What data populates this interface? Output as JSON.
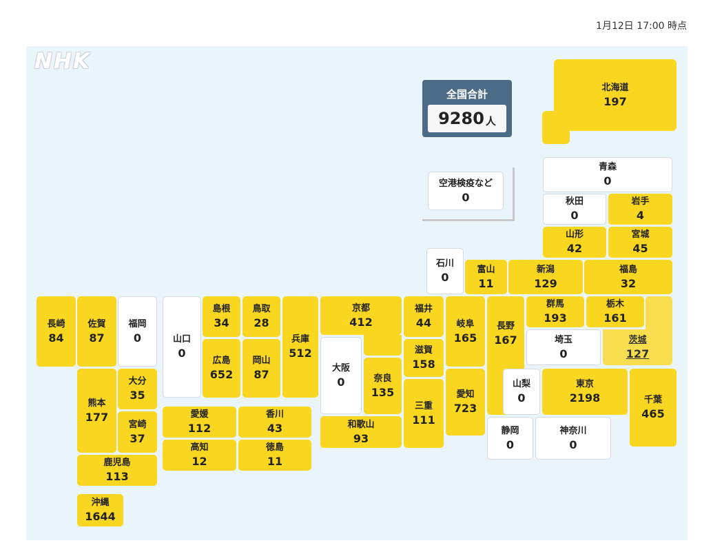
{
  "timestamp": "1月12日 17:00 時点",
  "logo": "NHK",
  "total": {
    "label": "全国合計",
    "value": "9280",
    "unit": "人"
  },
  "airport": {
    "name": "空港検疫など",
    "value": "0"
  },
  "colors": {
    "case_fill": "#f9d61f",
    "zero_fill": "#ffffff",
    "selected_fill": "#f8de4e",
    "map_bg": "#e9f4fb",
    "total_bg": "#4b6b86"
  },
  "prefectures": {
    "hokkaido": {
      "name": "北海道",
      "value": "197"
    },
    "aomori": {
      "name": "青森",
      "value": "0"
    },
    "akita": {
      "name": "秋田",
      "value": "0"
    },
    "iwate": {
      "name": "岩手",
      "value": "4"
    },
    "yamagata": {
      "name": "山形",
      "value": "42"
    },
    "miyagi": {
      "name": "宮城",
      "value": "45"
    },
    "ishikawa": {
      "name": "石川",
      "value": "0"
    },
    "toyama": {
      "name": "富山",
      "value": "11"
    },
    "niigata": {
      "name": "新潟",
      "value": "129"
    },
    "fukushima": {
      "name": "福島",
      "value": "32"
    },
    "nagasaki": {
      "name": "長崎",
      "value": "84"
    },
    "saga": {
      "name": "佐賀",
      "value": "87"
    },
    "fukuoka": {
      "name": "福岡",
      "value": "0"
    },
    "yamaguchi": {
      "name": "山口",
      "value": "0"
    },
    "shimane": {
      "name": "島根",
      "value": "34"
    },
    "tottori": {
      "name": "鳥取",
      "value": "28"
    },
    "hyogo": {
      "name": "兵庫",
      "value": "512"
    },
    "kyoto": {
      "name": "京都",
      "value": "412"
    },
    "fukui": {
      "name": "福井",
      "value": "44"
    },
    "gifu": {
      "name": "岐阜",
      "value": "165"
    },
    "nagano": {
      "name": "長野",
      "value": "167"
    },
    "gunma": {
      "name": "群馬",
      "value": "193"
    },
    "tochigi": {
      "name": "栃木",
      "value": "161"
    },
    "saitama": {
      "name": "埼玉",
      "value": "0"
    },
    "ibaraki": {
      "name": "茨城",
      "value": "127"
    },
    "hiroshima": {
      "name": "広島",
      "value": "652"
    },
    "okayama": {
      "name": "岡山",
      "value": "87"
    },
    "osaka": {
      "name": "大阪",
      "value": "0"
    },
    "nara": {
      "name": "奈良",
      "value": "135"
    },
    "shiga": {
      "name": "滋賀",
      "value": "158"
    },
    "kumamoto": {
      "name": "熊本",
      "value": "177"
    },
    "oita": {
      "name": "大分",
      "value": "35"
    },
    "miyazaki": {
      "name": "宮崎",
      "value": "37"
    },
    "yamanashi": {
      "name": "山梨",
      "value": "0"
    },
    "tokyo": {
      "name": "東京",
      "value": "2198"
    },
    "chiba": {
      "name": "千葉",
      "value": "465"
    },
    "aichi": {
      "name": "愛知",
      "value": "723"
    },
    "mie": {
      "name": "三重",
      "value": "111"
    },
    "wakayama": {
      "name": "和歌山",
      "value": "93"
    },
    "ehime": {
      "name": "愛媛",
      "value": "112"
    },
    "kagawa": {
      "name": "香川",
      "value": "43"
    },
    "kochi": {
      "name": "高知",
      "value": "12"
    },
    "tokushima": {
      "name": "徳島",
      "value": "11"
    },
    "shizuoka": {
      "name": "静岡",
      "value": "0"
    },
    "kanagawa": {
      "name": "神奈川",
      "value": "0"
    },
    "kagoshima": {
      "name": "鹿児島",
      "value": "113"
    },
    "okinawa": {
      "name": "沖縄",
      "value": "1644"
    }
  }
}
